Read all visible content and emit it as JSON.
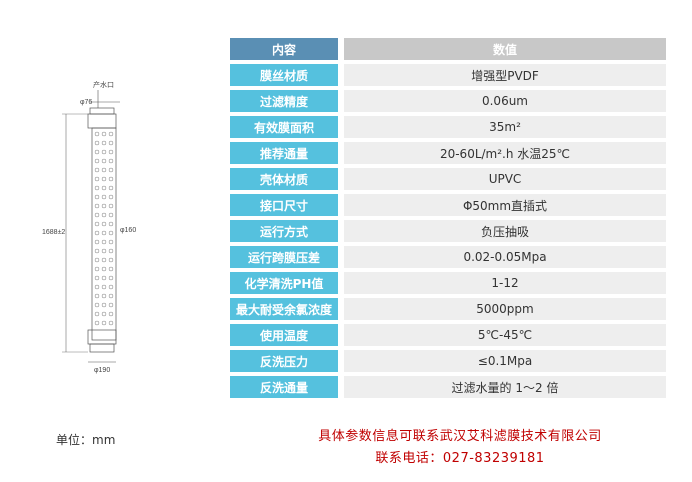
{
  "drawing": {
    "label_outlet": "产水口",
    "label_top_dia": "φ76",
    "label_length": "1688±2",
    "label_body_dia": "φ160",
    "label_bottom_dia": "φ190"
  },
  "table": {
    "header": {
      "param": "内容",
      "value": "数值"
    },
    "rows": [
      {
        "param": "膜丝材质",
        "value": "增强型PVDF"
      },
      {
        "param": "过滤精度",
        "value": "0.06um"
      },
      {
        "param": "有效膜面积",
        "value": "35m²"
      },
      {
        "param": "推荐通量",
        "value": "20-60L/m².h    水温25℃"
      },
      {
        "param": "壳体材质",
        "value": "UPVC"
      },
      {
        "param": "接口尺寸",
        "value": "Φ50mm直插式"
      },
      {
        "param": "运行方式",
        "value": "负压抽吸"
      },
      {
        "param": "运行跨膜压差",
        "value": "0.02-0.05Mpa"
      },
      {
        "param": "化学清洗PH值",
        "value": "1-12"
      },
      {
        "param": "最大耐受余氯浓度",
        "value": "5000ppm"
      },
      {
        "param": "使用温度",
        "value": "5℃-45℃"
      },
      {
        "param": "反洗压力",
        "value": "≤0.1Mpa"
      },
      {
        "param": "反洗通量",
        "value": "过滤水量的 1～2 倍"
      }
    ]
  },
  "unit_note": "单位：mm",
  "contact": {
    "line1": "具体参数信息可联系武汉艾科滤膜技术有限公司",
    "line2": "联系电话：027-83239181"
  },
  "colors": {
    "param_cell": "#55c1de",
    "header_param_cell": "#5a8fb4",
    "value_cell": "#eeeeee",
    "header_value_cell": "#c8c8c8",
    "contact_text": "#c00000"
  }
}
